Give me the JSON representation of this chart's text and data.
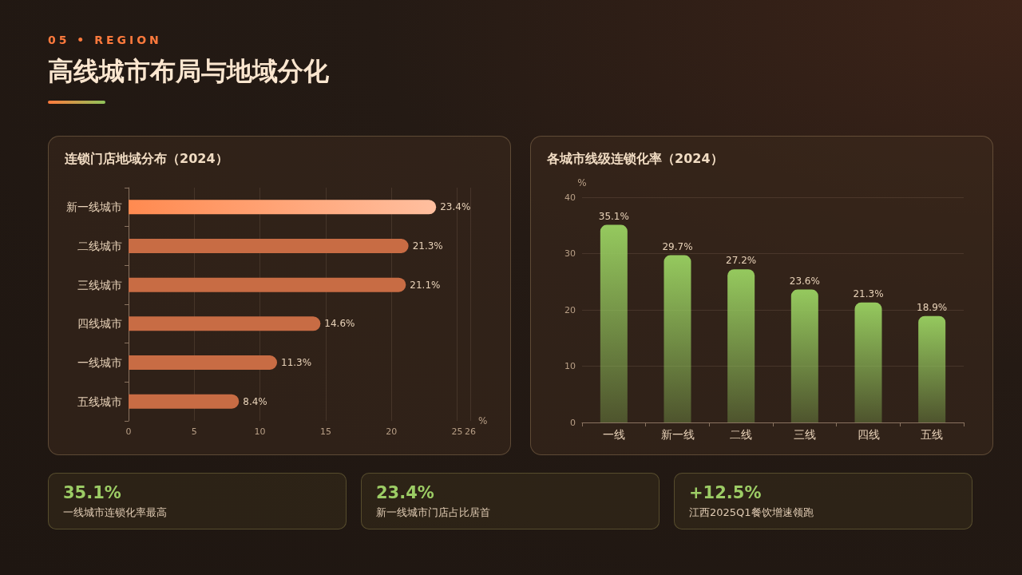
{
  "chart_data": [
    {
      "type": "other",
      "subtitle": "05 • REGION",
      "title": "高线城市布局与地域分化"
    },
    {
      "type": "bar",
      "orientation": "horizontal",
      "title": "连锁门店地域分布（2024）",
      "xlabel": "%",
      "categories": [
        "新一线城市",
        "二线城市",
        "三线城市",
        "四线城市",
        "一线城市",
        "五线城市"
      ],
      "values": [
        23.4,
        21.3,
        21.1,
        14.6,
        11.3,
        8.4
      ],
      "colors": [
        "#ff8a50",
        "#c86c44",
        "#c86c44",
        "#c86c44",
        "#c86c44",
        "#c86c44"
      ],
      "value_labels": [
        "23.4%",
        "21.3%",
        "21.1%",
        "14.6%",
        "11.3%",
        "8.4%"
      ],
      "xlim": [
        0,
        26
      ],
      "xticks": [
        0,
        5,
        10,
        15,
        20,
        25,
        26
      ],
      "grid": "x"
    },
    {
      "type": "bar",
      "title": "各城市线级连锁化率（2024）",
      "ylabel": "%",
      "categories": [
        "一线",
        "新一线",
        "二线",
        "三线",
        "四线",
        "五线"
      ],
      "values": [
        35.1,
        29.7,
        27.2,
        23.6,
        21.3,
        18.9
      ],
      "color": "#95c95e",
      "value_labels": [
        "35.1%",
        "29.7%",
        "27.2%",
        "23.6%",
        "21.3%",
        "18.9%"
      ],
      "ylim": [
        0,
        40
      ],
      "yticks": [
        0,
        10,
        20,
        30,
        40
      ],
      "grid": "y"
    },
    {
      "type": "other",
      "title": "35.1%",
      "subtitle": "一线城市连锁化率最高"
    },
    {
      "type": "other",
      "title": "23.4%",
      "subtitle": "新一线城市门店占比居首"
    },
    {
      "type": "other",
      "title": "+12.5%",
      "subtitle": "江西2025Q1餐饮增速领跑"
    }
  ]
}
